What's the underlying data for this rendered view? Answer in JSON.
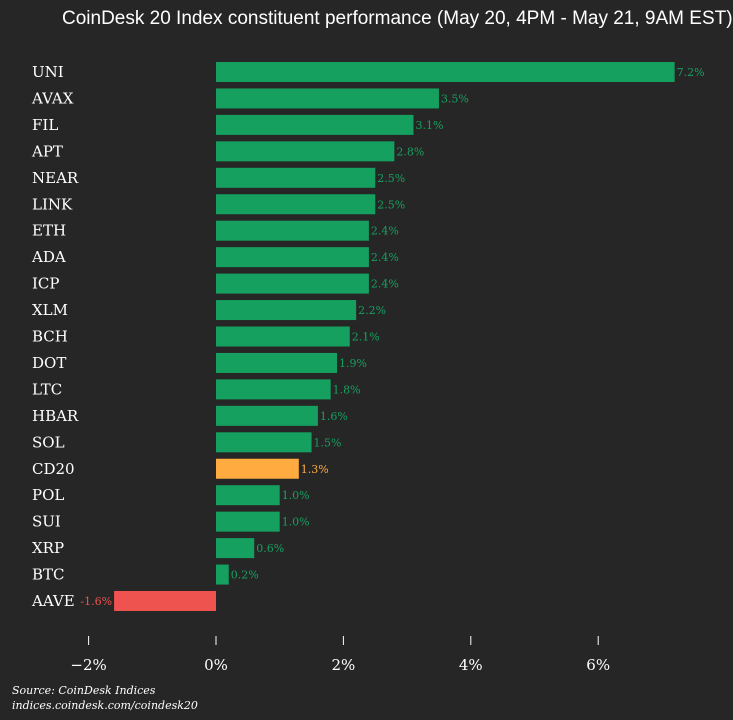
{
  "chart_data": {
    "type": "bar",
    "orientation": "horizontal",
    "title": "CoinDesk 20 Index constituent performance (May 20, 4PM - May 21, 9AM EST)",
    "categories": [
      "UNI",
      "AVAX",
      "FIL",
      "APT",
      "NEAR",
      "LINK",
      "ETH",
      "ADA",
      "ICP",
      "XLM",
      "BCH",
      "DOT",
      "LTC",
      "HBAR",
      "SOL",
      "CD20",
      "POL",
      "SUI",
      "XRP",
      "BTC",
      "AAVE"
    ],
    "values": [
      7.2,
      3.5,
      3.1,
      2.8,
      2.5,
      2.5,
      2.4,
      2.4,
      2.4,
      2.2,
      2.1,
      1.9,
      1.8,
      1.6,
      1.5,
      1.3,
      1.0,
      1.0,
      0.6,
      0.2,
      -1.6
    ],
    "value_labels": [
      "7.2%",
      "3.5%",
      "3.1%",
      "2.8%",
      "2.5%",
      "2.5%",
      "2.4%",
      "2.4%",
      "2.4%",
      "2.2%",
      "2.1%",
      "1.9%",
      "1.8%",
      "1.6%",
      "1.5%",
      "1.3%",
      "1.0%",
      "1.0%",
      "0.6%",
      "0.2%",
      "-1.6%"
    ],
    "highlight": [
      "",
      "",
      "",
      "",
      "",
      "",
      "",
      "",
      "",
      "",
      "",
      "",
      "",
      "",
      "",
      "index",
      "",
      "",
      "",
      "",
      "negative"
    ],
    "xlim": [
      -2,
      7.2
    ],
    "xticks": [
      -2,
      0,
      2,
      4,
      6
    ],
    "xtick_labels": [
      "−2%",
      "0%",
      "2%",
      "4%",
      "6%"
    ],
    "grid": false,
    "colors": {
      "positive": "#16a05f",
      "index": "#ffab40",
      "negative": "#ef5350",
      "background": "#262626",
      "text": "#ffffff"
    }
  },
  "source": {
    "line1": "Source: CoinDesk Indices",
    "line2": "indices.coindesk.com/coindesk20"
  }
}
